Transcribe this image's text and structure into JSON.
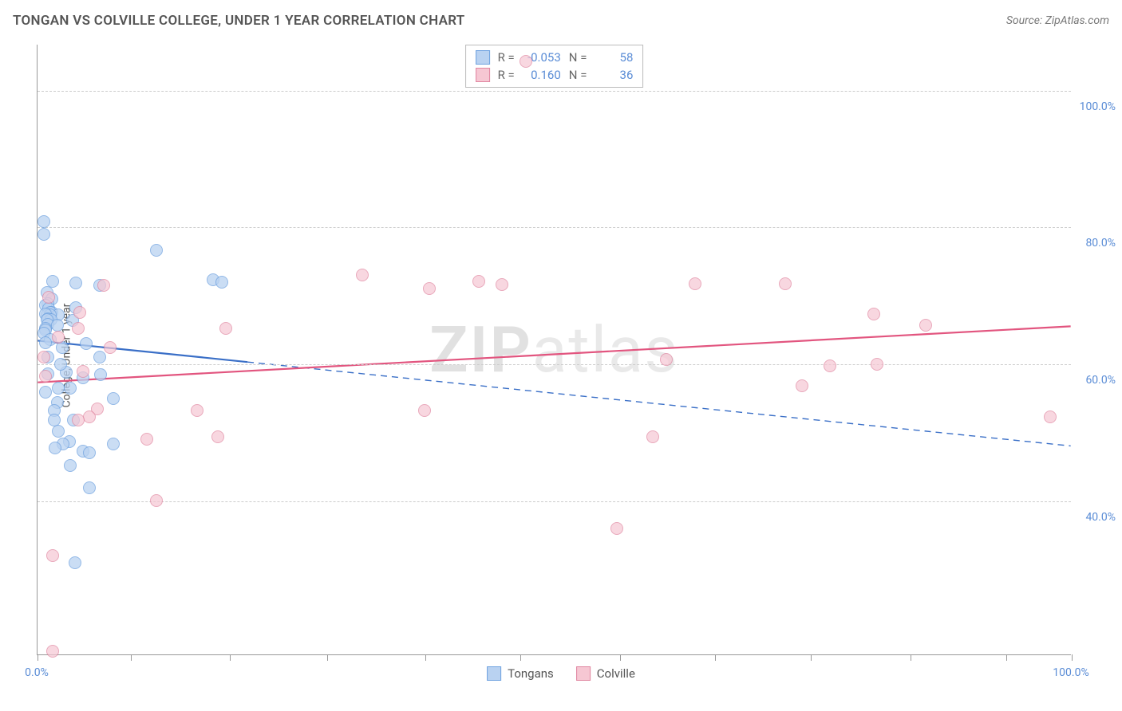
{
  "title": "TONGAN VS COLVILLE COLLEGE, UNDER 1 YEAR CORRELATION CHART",
  "source_label": "Source: ZipAtlas.com",
  "watermark": {
    "bold": "ZIP",
    "light": "atlas"
  },
  "chart": {
    "type": "scatter",
    "y_axis_title": "College, Under 1 year",
    "background_color": "#ffffff",
    "grid_color": "#cccccc",
    "axis_line_color": "#999999",
    "tick_label_color": "#5b8dd6",
    "tick_label_fontsize": 14,
    "title_fontsize": 17,
    "xlim": [
      0,
      100
    ],
    "ylim": [
      17.5,
      106.7
    ],
    "xtick_positions": [
      0,
      9.0,
      18.6,
      28.0,
      37.5,
      46.7,
      56.3,
      65.5,
      74.8,
      84.4,
      93.7,
      100
    ],
    "xtick_labels": {
      "0": "0.0%",
      "100": "100.0%"
    },
    "ytick_positions": [
      40,
      60,
      80,
      100
    ],
    "ytick_labels": {
      "40": "40.0%",
      "60": "60.0%",
      "80": "80.0%",
      "100": "100.0%"
    },
    "series": [
      {
        "name": "Tongans",
        "r_value": "-0.053",
        "n_value": "58",
        "marker_fill": "#b9d2f1",
        "marker_stroke": "#6fa2df",
        "marker_fill_opacity": 0.75,
        "marker_radius": 8,
        "trend_color": "#3a6fc7",
        "trend_width": 2.2,
        "trend_solid_end_x": 20.3,
        "trend_y_start": 63.4,
        "trend_y_end": 48.0,
        "points": [
          {
            "x": 0.6,
            "y": 80.9
          },
          {
            "x": 0.6,
            "y": 79.0
          },
          {
            "x": 1.5,
            "y": 72.1
          },
          {
            "x": 3.7,
            "y": 71.9
          },
          {
            "x": 0.9,
            "y": 70.5
          },
          {
            "x": 1.4,
            "y": 69.5
          },
          {
            "x": 1.0,
            "y": 68.8
          },
          {
            "x": 0.8,
            "y": 68.6
          },
          {
            "x": 3.7,
            "y": 68.3
          },
          {
            "x": 1.1,
            "y": 68.2
          },
          {
            "x": 1.4,
            "y": 67.6
          },
          {
            "x": 1.2,
            "y": 67.6
          },
          {
            "x": 0.9,
            "y": 67.2
          },
          {
            "x": 2.0,
            "y": 67.2
          },
          {
            "x": 1.2,
            "y": 67.2
          },
          {
            "x": 0.8,
            "y": 67.3
          },
          {
            "x": 1.0,
            "y": 66.6
          },
          {
            "x": 1.3,
            "y": 66.5
          },
          {
            "x": 3.4,
            "y": 66.4
          },
          {
            "x": 0.9,
            "y": 66.5
          },
          {
            "x": 1.0,
            "y": 65.8
          },
          {
            "x": 1.9,
            "y": 65.7
          },
          {
            "x": 0.8,
            "y": 65.3
          },
          {
            "x": 0.8,
            "y": 65.0
          },
          {
            "x": 0.6,
            "y": 64.6
          },
          {
            "x": 1.2,
            "y": 63.6
          },
          {
            "x": 0.8,
            "y": 63.1
          },
          {
            "x": 4.7,
            "y": 63.0
          },
          {
            "x": 2.4,
            "y": 62.4
          },
          {
            "x": 1.0,
            "y": 61.1
          },
          {
            "x": 6.0,
            "y": 61.0
          },
          {
            "x": 1.0,
            "y": 58.6
          },
          {
            "x": 2.8,
            "y": 58.8
          },
          {
            "x": 6.1,
            "y": 58.5
          },
          {
            "x": 4.4,
            "y": 58.0
          },
          {
            "x": 2.0,
            "y": 56.5
          },
          {
            "x": 3.2,
            "y": 56.5
          },
          {
            "x": 0.8,
            "y": 55.9
          },
          {
            "x": 1.9,
            "y": 54.4
          },
          {
            "x": 1.6,
            "y": 53.3
          },
          {
            "x": 1.6,
            "y": 51.9
          },
          {
            "x": 3.5,
            "y": 51.9
          },
          {
            "x": 2.0,
            "y": 50.2
          },
          {
            "x": 3.1,
            "y": 48.7
          },
          {
            "x": 7.3,
            "y": 48.4
          },
          {
            "x": 2.5,
            "y": 48.4
          },
          {
            "x": 1.7,
            "y": 47.8
          },
          {
            "x": 4.4,
            "y": 47.3
          },
          {
            "x": 5.0,
            "y": 47.1
          },
          {
            "x": 3.2,
            "y": 45.2
          },
          {
            "x": 3.6,
            "y": 31.0
          },
          {
            "x": 11.5,
            "y": 76.7
          },
          {
            "x": 17.0,
            "y": 72.3
          },
          {
            "x": 17.8,
            "y": 72.0
          },
          {
            "x": 7.3,
            "y": 55.0
          },
          {
            "x": 2.2,
            "y": 60.0
          },
          {
            "x": 5.0,
            "y": 42.0
          },
          {
            "x": 6.0,
            "y": 71.5
          }
        ]
      },
      {
        "name": "Colville",
        "r_value": "0.160",
        "n_value": "36",
        "marker_fill": "#f6c7d3",
        "marker_stroke": "#e085a0",
        "marker_fill_opacity": 0.7,
        "marker_radius": 8,
        "trend_color": "#e2557f",
        "trend_width": 2.2,
        "trend_solid_end_x": 100,
        "trend_y_start": 57.3,
        "trend_y_end": 65.5,
        "points": [
          {
            "x": 47.2,
            "y": 104.2
          },
          {
            "x": 6.4,
            "y": 71.5
          },
          {
            "x": 1.1,
            "y": 69.8
          },
          {
            "x": 4.1,
            "y": 67.6
          },
          {
            "x": 3.9,
            "y": 65.3
          },
          {
            "x": 18.2,
            "y": 65.3
          },
          {
            "x": 0.6,
            "y": 61.1
          },
          {
            "x": 4.4,
            "y": 59.0
          },
          {
            "x": 0.8,
            "y": 58.3
          },
          {
            "x": 5.8,
            "y": 53.5
          },
          {
            "x": 5.0,
            "y": 52.3
          },
          {
            "x": 3.9,
            "y": 51.9
          },
          {
            "x": 15.4,
            "y": 53.3
          },
          {
            "x": 10.6,
            "y": 49.1
          },
          {
            "x": 17.4,
            "y": 49.4
          },
          {
            "x": 11.5,
            "y": 40.1
          },
          {
            "x": 1.5,
            "y": 32.1
          },
          {
            "x": 1.5,
            "y": 18.1
          },
          {
            "x": 31.4,
            "y": 73.1
          },
          {
            "x": 37.9,
            "y": 71.1
          },
          {
            "x": 37.4,
            "y": 53.3
          },
          {
            "x": 42.7,
            "y": 72.1
          },
          {
            "x": 44.9,
            "y": 71.6
          },
          {
            "x": 56.0,
            "y": 36.0
          },
          {
            "x": 59.5,
            "y": 49.4
          },
          {
            "x": 60.8,
            "y": 60.7
          },
          {
            "x": 63.6,
            "y": 71.8
          },
          {
            "x": 72.3,
            "y": 71.8
          },
          {
            "x": 73.9,
            "y": 56.9
          },
          {
            "x": 76.6,
            "y": 59.8
          },
          {
            "x": 80.9,
            "y": 67.3
          },
          {
            "x": 85.9,
            "y": 65.7
          },
          {
            "x": 81.2,
            "y": 60.0
          },
          {
            "x": 97.9,
            "y": 52.3
          },
          {
            "x": 7.0,
            "y": 62.5
          },
          {
            "x": 2.0,
            "y": 64.0
          }
        ]
      }
    ]
  }
}
